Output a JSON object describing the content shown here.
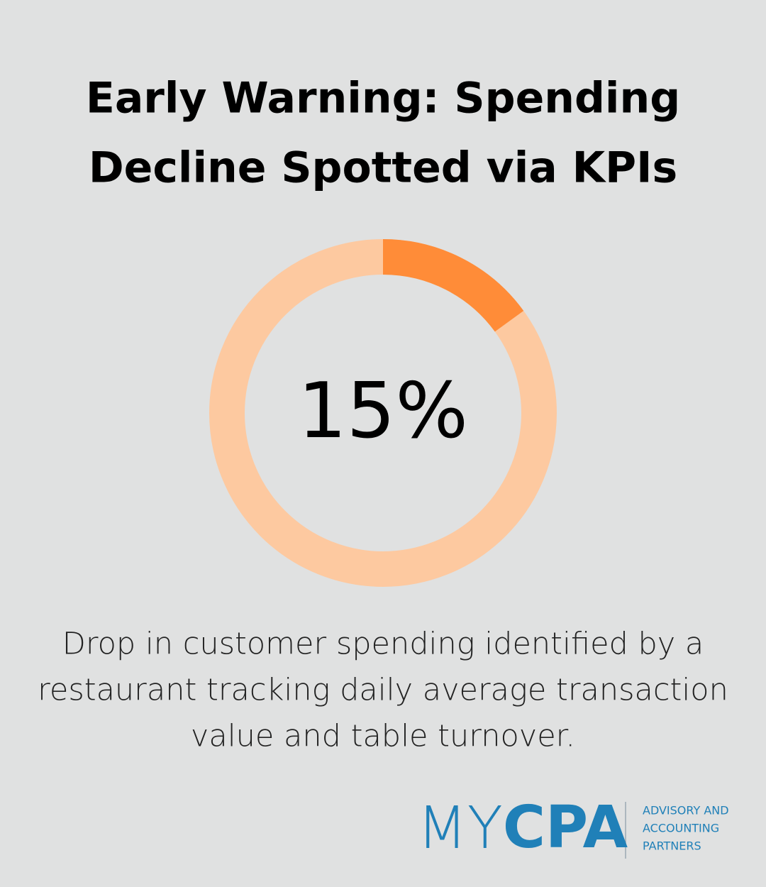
{
  "chart_data": {
    "type": "donut",
    "title_lines": [
      "Early Warning: Spending",
      "Decline Spotted via KPIs"
    ],
    "values": [
      15
    ],
    "value_labels": [
      "15%"
    ],
    "ylim": [
      0,
      100
    ],
    "color": "#ff8c38",
    "track_color": "#fdc9a0",
    "caption_lines": [
      "Drop in customer spending identified by a",
      "restaurant tracking daily average transaction",
      "value and table turnover."
    ]
  },
  "logo": {
    "light": "MY",
    "bold": "CPA",
    "tagline": [
      "ADVISORY AND",
      "ACCOUNTING",
      "PARTNERS"
    ],
    "color": "#2080b8"
  }
}
